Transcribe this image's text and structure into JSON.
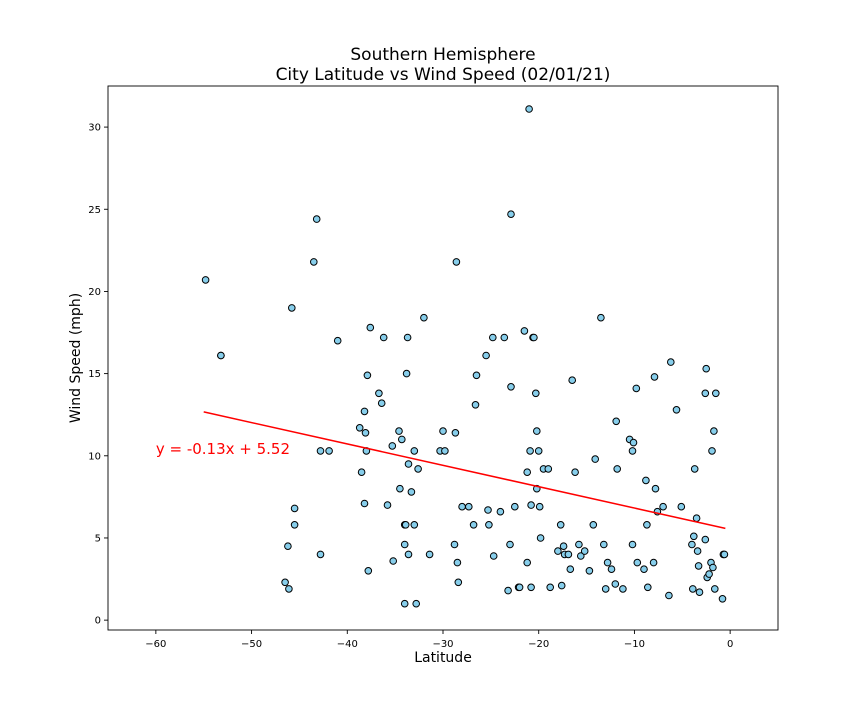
{
  "chart_data": {
    "type": "scatter",
    "title_line1": "Southern Hemisphere",
    "title_line2": "City Latitude vs Wind Speed (02/01/21)",
    "xlabel": "Latitude",
    "ylabel": "Wind Speed (mph)",
    "xlim": [
      -65,
      5
    ],
    "ylim": [
      -0.6,
      32.5
    ],
    "xticks": [
      -60,
      -50,
      -40,
      -30,
      -20,
      -10,
      0
    ],
    "xtick_labels": [
      "−60",
      "−50",
      "−40",
      "−30",
      "−20",
      "−10",
      "0"
    ],
    "yticks": [
      0,
      5,
      10,
      15,
      20,
      25,
      30
    ],
    "ytick_labels": [
      "0",
      "5",
      "10",
      "15",
      "20",
      "25",
      "30"
    ],
    "grid": false,
    "marker_color": "#87ceeb",
    "marker_edge_color": "#000000",
    "regression": {
      "slope": -0.13,
      "intercept": 5.52,
      "x_range": [
        -55,
        -0.5
      ],
      "color": "#ff0000",
      "equation": "y = -0.13x + 5.52",
      "equation_at": [
        -60,
        10.1
      ]
    },
    "points": [
      [
        -54.8,
        20.7
      ],
      [
        -53.2,
        16.1
      ],
      [
        -53.2,
        16.1
      ],
      [
        -46.5,
        2.3
      ],
      [
        -46.2,
        4.5
      ],
      [
        -46.1,
        1.9
      ],
      [
        -45.8,
        19.0
      ],
      [
        -45.5,
        6.8
      ],
      [
        -45.5,
        5.8
      ],
      [
        -43.5,
        21.8
      ],
      [
        -43.2,
        24.4
      ],
      [
        -42.8,
        10.3
      ],
      [
        -42.8,
        4.0
      ],
      [
        -41.9,
        10.3
      ],
      [
        -41.0,
        17.0
      ],
      [
        -38.7,
        11.7
      ],
      [
        -38.5,
        9.0
      ],
      [
        -38.2,
        12.7
      ],
      [
        -38.2,
        7.1
      ],
      [
        -38.1,
        11.4
      ],
      [
        -38.0,
        10.3
      ],
      [
        -37.9,
        14.9
      ],
      [
        -37.8,
        3.0
      ],
      [
        -37.6,
        17.8
      ],
      [
        -36.7,
        13.8
      ],
      [
        -36.4,
        13.2
      ],
      [
        -36.2,
        17.2
      ],
      [
        -35.8,
        7.0
      ],
      [
        -35.3,
        10.6
      ],
      [
        -35.2,
        3.6
      ],
      [
        -34.6,
        11.5
      ],
      [
        -34.5,
        8.0
      ],
      [
        -34.3,
        11.0
      ],
      [
        -34.0,
        1.0
      ],
      [
        -34.0,
        5.8
      ],
      [
        -34.0,
        4.6
      ],
      [
        -33.9,
        5.8
      ],
      [
        -33.8,
        15.0
      ],
      [
        -33.7,
        17.2
      ],
      [
        -33.6,
        9.5
      ],
      [
        -33.6,
        4.0
      ],
      [
        -33.3,
        7.8
      ],
      [
        -33.0,
        5.8
      ],
      [
        -33.0,
        10.3
      ],
      [
        -32.8,
        1.0
      ],
      [
        -32.6,
        9.2
      ],
      [
        -32.0,
        18.4
      ],
      [
        -31.4,
        4.0
      ],
      [
        -30.3,
        10.3
      ],
      [
        -30.0,
        11.5
      ],
      [
        -29.8,
        10.3
      ],
      [
        -28.8,
        4.6
      ],
      [
        -28.7,
        11.4
      ],
      [
        -28.6,
        21.8
      ],
      [
        -28.5,
        3.5
      ],
      [
        -28.4,
        2.3
      ],
      [
        -28.0,
        6.9
      ],
      [
        -27.3,
        6.9
      ],
      [
        -26.8,
        5.8
      ],
      [
        -26.6,
        13.1
      ],
      [
        -26.5,
        14.9
      ],
      [
        -25.5,
        16.1
      ],
      [
        -25.3,
        6.7
      ],
      [
        -25.2,
        5.8
      ],
      [
        -24.8,
        17.2
      ],
      [
        -24.7,
        3.9
      ],
      [
        -24.0,
        6.6
      ],
      [
        -23.6,
        17.2
      ],
      [
        -23.2,
        1.8
      ],
      [
        -23.0,
        4.6
      ],
      [
        -22.9,
        14.2
      ],
      [
        -22.9,
        24.7
      ],
      [
        -22.5,
        6.9
      ],
      [
        -22.1,
        2.0
      ],
      [
        -22.0,
        2.0
      ],
      [
        -21.5,
        17.6
      ],
      [
        -21.2,
        9.0
      ],
      [
        -21.2,
        3.5
      ],
      [
        -21.0,
        31.1
      ],
      [
        -20.9,
        10.3
      ],
      [
        -20.8,
        2.0
      ],
      [
        -20.8,
        7.0
      ],
      [
        -20.6,
        17.2
      ],
      [
        -20.5,
        17.2
      ],
      [
        -20.3,
        13.8
      ],
      [
        -20.2,
        11.5
      ],
      [
        -20.2,
        8.0
      ],
      [
        -20.0,
        10.3
      ],
      [
        -19.9,
        6.9
      ],
      [
        -19.8,
        5.0
      ],
      [
        -19.5,
        9.2
      ],
      [
        -19.0,
        9.2
      ],
      [
        -18.8,
        2.0
      ],
      [
        -18.0,
        4.2
      ],
      [
        -17.7,
        5.8
      ],
      [
        -17.6,
        2.1
      ],
      [
        -17.4,
        4.5
      ],
      [
        -17.3,
        4.0
      ],
      [
        -16.9,
        4.0
      ],
      [
        -16.7,
        3.1
      ],
      [
        -16.5,
        14.6
      ],
      [
        -16.2,
        9.0
      ],
      [
        -15.8,
        4.6
      ],
      [
        -15.6,
        3.9
      ],
      [
        -15.2,
        4.2
      ],
      [
        -14.7,
        3.0
      ],
      [
        -14.3,
        5.8
      ],
      [
        -14.1,
        9.8
      ],
      [
        -13.5,
        18.4
      ],
      [
        -13.2,
        4.6
      ],
      [
        -13.0,
        1.9
      ],
      [
        -12.8,
        3.5
      ],
      [
        -12.4,
        3.1
      ],
      [
        -12.0,
        2.2
      ],
      [
        -11.9,
        12.1
      ],
      [
        -11.8,
        9.2
      ],
      [
        -11.2,
        1.9
      ],
      [
        -10.5,
        11.0
      ],
      [
        -10.2,
        10.3
      ],
      [
        -10.2,
        4.6
      ],
      [
        -10.1,
        10.8
      ],
      [
        -9.8,
        14.1
      ],
      [
        -9.7,
        3.5
      ],
      [
        -9.0,
        3.1
      ],
      [
        -8.8,
        8.5
      ],
      [
        -8.7,
        5.8
      ],
      [
        -8.6,
        2.0
      ],
      [
        -8.0,
        3.5
      ],
      [
        -7.9,
        14.8
      ],
      [
        -7.8,
        8.0
      ],
      [
        -7.6,
        6.6
      ],
      [
        -7.0,
        6.9
      ],
      [
        -6.4,
        1.5
      ],
      [
        -6.2,
        15.7
      ],
      [
        -5.6,
        12.8
      ],
      [
        -5.1,
        6.9
      ],
      [
        -4.0,
        4.6
      ],
      [
        -3.9,
        1.9
      ],
      [
        -3.8,
        5.1
      ],
      [
        -3.7,
        9.2
      ],
      [
        -3.5,
        6.2
      ],
      [
        -3.4,
        4.2
      ],
      [
        -3.3,
        3.3
      ],
      [
        -3.2,
        1.7
      ],
      [
        -2.6,
        4.9
      ],
      [
        -2.6,
        13.8
      ],
      [
        -2.5,
        15.3
      ],
      [
        -2.4,
        2.6
      ],
      [
        -2.2,
        2.8
      ],
      [
        -2.0,
        3.5
      ],
      [
        -1.9,
        10.3
      ],
      [
        -1.8,
        3.2
      ],
      [
        -1.7,
        11.5
      ],
      [
        -1.6,
        1.9
      ],
      [
        -1.5,
        13.8
      ],
      [
        -0.8,
        1.3
      ],
      [
        -0.7,
        4.0
      ],
      [
        -0.6,
        4.0
      ]
    ]
  }
}
